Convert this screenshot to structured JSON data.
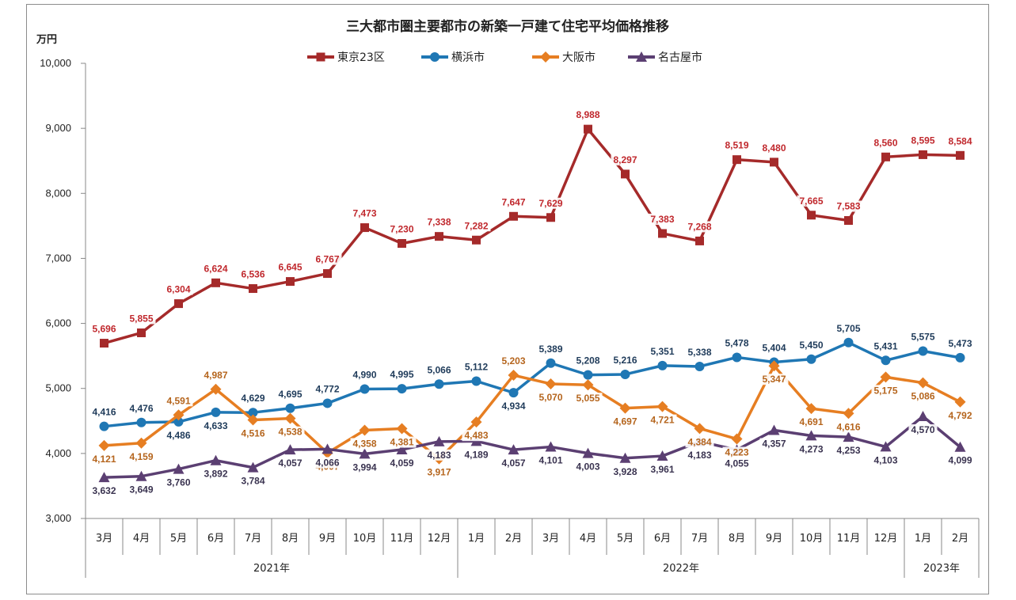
{
  "chart_data": {
    "type": "line",
    "title": "三大都市圏主要都市の新築一戸建て住宅平均価格推移",
    "ylabel": "万円",
    "ylim": [
      3000,
      10000
    ],
    "yticks": [
      "3,000",
      "4,000",
      "5,000",
      "6,000",
      "7,000",
      "8,000",
      "9,000",
      "10,000"
    ],
    "categories": [
      "3月",
      "4月",
      "5月",
      "6月",
      "7月",
      "8月",
      "9月",
      "10月",
      "11月",
      "12月",
      "1月",
      "2月",
      "3月",
      "4月",
      "5月",
      "6月",
      "7月",
      "8月",
      "9月",
      "10月",
      "11月",
      "12月",
      "1月",
      "2月"
    ],
    "years": [
      {
        "label": "2021年",
        "start": 0,
        "end": 9
      },
      {
        "label": "2022年",
        "start": 10,
        "end": 21
      },
      {
        "label": "2023年",
        "start": 22,
        "end": 23
      }
    ],
    "legend_position": "top",
    "grid": false,
    "series": [
      {
        "name": "東京23区",
        "color": "#a52a2a",
        "label_color": "#c0282d",
        "marker": "square",
        "values": [
          5696,
          5855,
          6304,
          6624,
          6536,
          6645,
          6767,
          7473,
          7230,
          7338,
          7282,
          7647,
          7629,
          8988,
          8297,
          7383,
          7268,
          8519,
          8480,
          7665,
          7583,
          8560,
          8595,
          8584
        ]
      },
      {
        "name": "横浜市",
        "color": "#1f77b4",
        "label_color": "#1f3b5a",
        "marker": "circle",
        "values": [
          4416,
          4476,
          4486,
          4633,
          4629,
          4695,
          4772,
          4990,
          4995,
          5066,
          5112,
          4934,
          5389,
          5208,
          5216,
          5351,
          5338,
          5478,
          5404,
          5450,
          5705,
          5431,
          5575,
          5473
        ]
      },
      {
        "name": "大阪市",
        "color": "#e67e22",
        "label_color": "#b5651d",
        "marker": "diamond",
        "values": [
          4121,
          4159,
          4591,
          4987,
          4516,
          4538,
          4007,
          4358,
          4381,
          3917,
          4483,
          5203,
          5070,
          5055,
          4697,
          4721,
          4384,
          4223,
          5347,
          4691,
          4616,
          5175,
          5086,
          4792
        ]
      },
      {
        "name": "名古屋市",
        "color": "#5b3f72",
        "label_color": "#3a3350",
        "marker": "triangle",
        "values": [
          3632,
          3649,
          3760,
          3892,
          3784,
          4057,
          4066,
          3994,
          4059,
          4183,
          4189,
          4057,
          4101,
          4003,
          3928,
          3961,
          4183,
          4055,
          4357,
          4273,
          4253,
          4103,
          4570,
          4099
        ]
      }
    ],
    "value_labels": [
      [
        "5,696",
        "5,855",
        "6,304",
        "6,624",
        "6,536",
        "6,645",
        "6,767",
        "7,473",
        "7,230",
        "7,338",
        "7,282",
        "7,647",
        "7,629",
        "8,988",
        "8,297",
        "7,383",
        "7,268",
        "8,519",
        "8,480",
        "7,665",
        "7,583",
        "8,560",
        "8,595",
        "8,584"
      ],
      [
        "4,416",
        "4,476",
        "4,486",
        "4,633",
        "4,629",
        "4,695",
        "4,772",
        "4,990",
        "4,995",
        "5,066",
        "5,112",
        "4,934",
        "5,389",
        "5,208",
        "5,216",
        "5,351",
        "5,338",
        "5,478",
        "5,404",
        "5,450",
        "5,705",
        "5,431",
        "5,575",
        "5,473"
      ],
      [
        "4,121",
        "4,159",
        "4,591",
        "4,987",
        "4,516",
        "4,538",
        "4,007",
        "4,358",
        "4,381",
        "3,917",
        "4,483",
        "5,203",
        "5,070",
        "5,055",
        "4,697",
        "4,721",
        "4,384",
        "4,223",
        "5,347",
        "4,691",
        "4,616",
        "5,175",
        "5,086",
        "4,792"
      ],
      [
        "3,632",
        "3,649",
        "3,760",
        "3,892",
        "3,784",
        "4,057",
        "4,066",
        "3,994",
        "4,059",
        "4,183",
        "4,189",
        "4,057",
        "4,101",
        "4,003",
        "3,928",
        "3,961",
        "4,183",
        "4,055",
        "4,357",
        "4,273",
        "4,253",
        "4,103",
        "4,570",
        "4,099"
      ]
    ]
  }
}
